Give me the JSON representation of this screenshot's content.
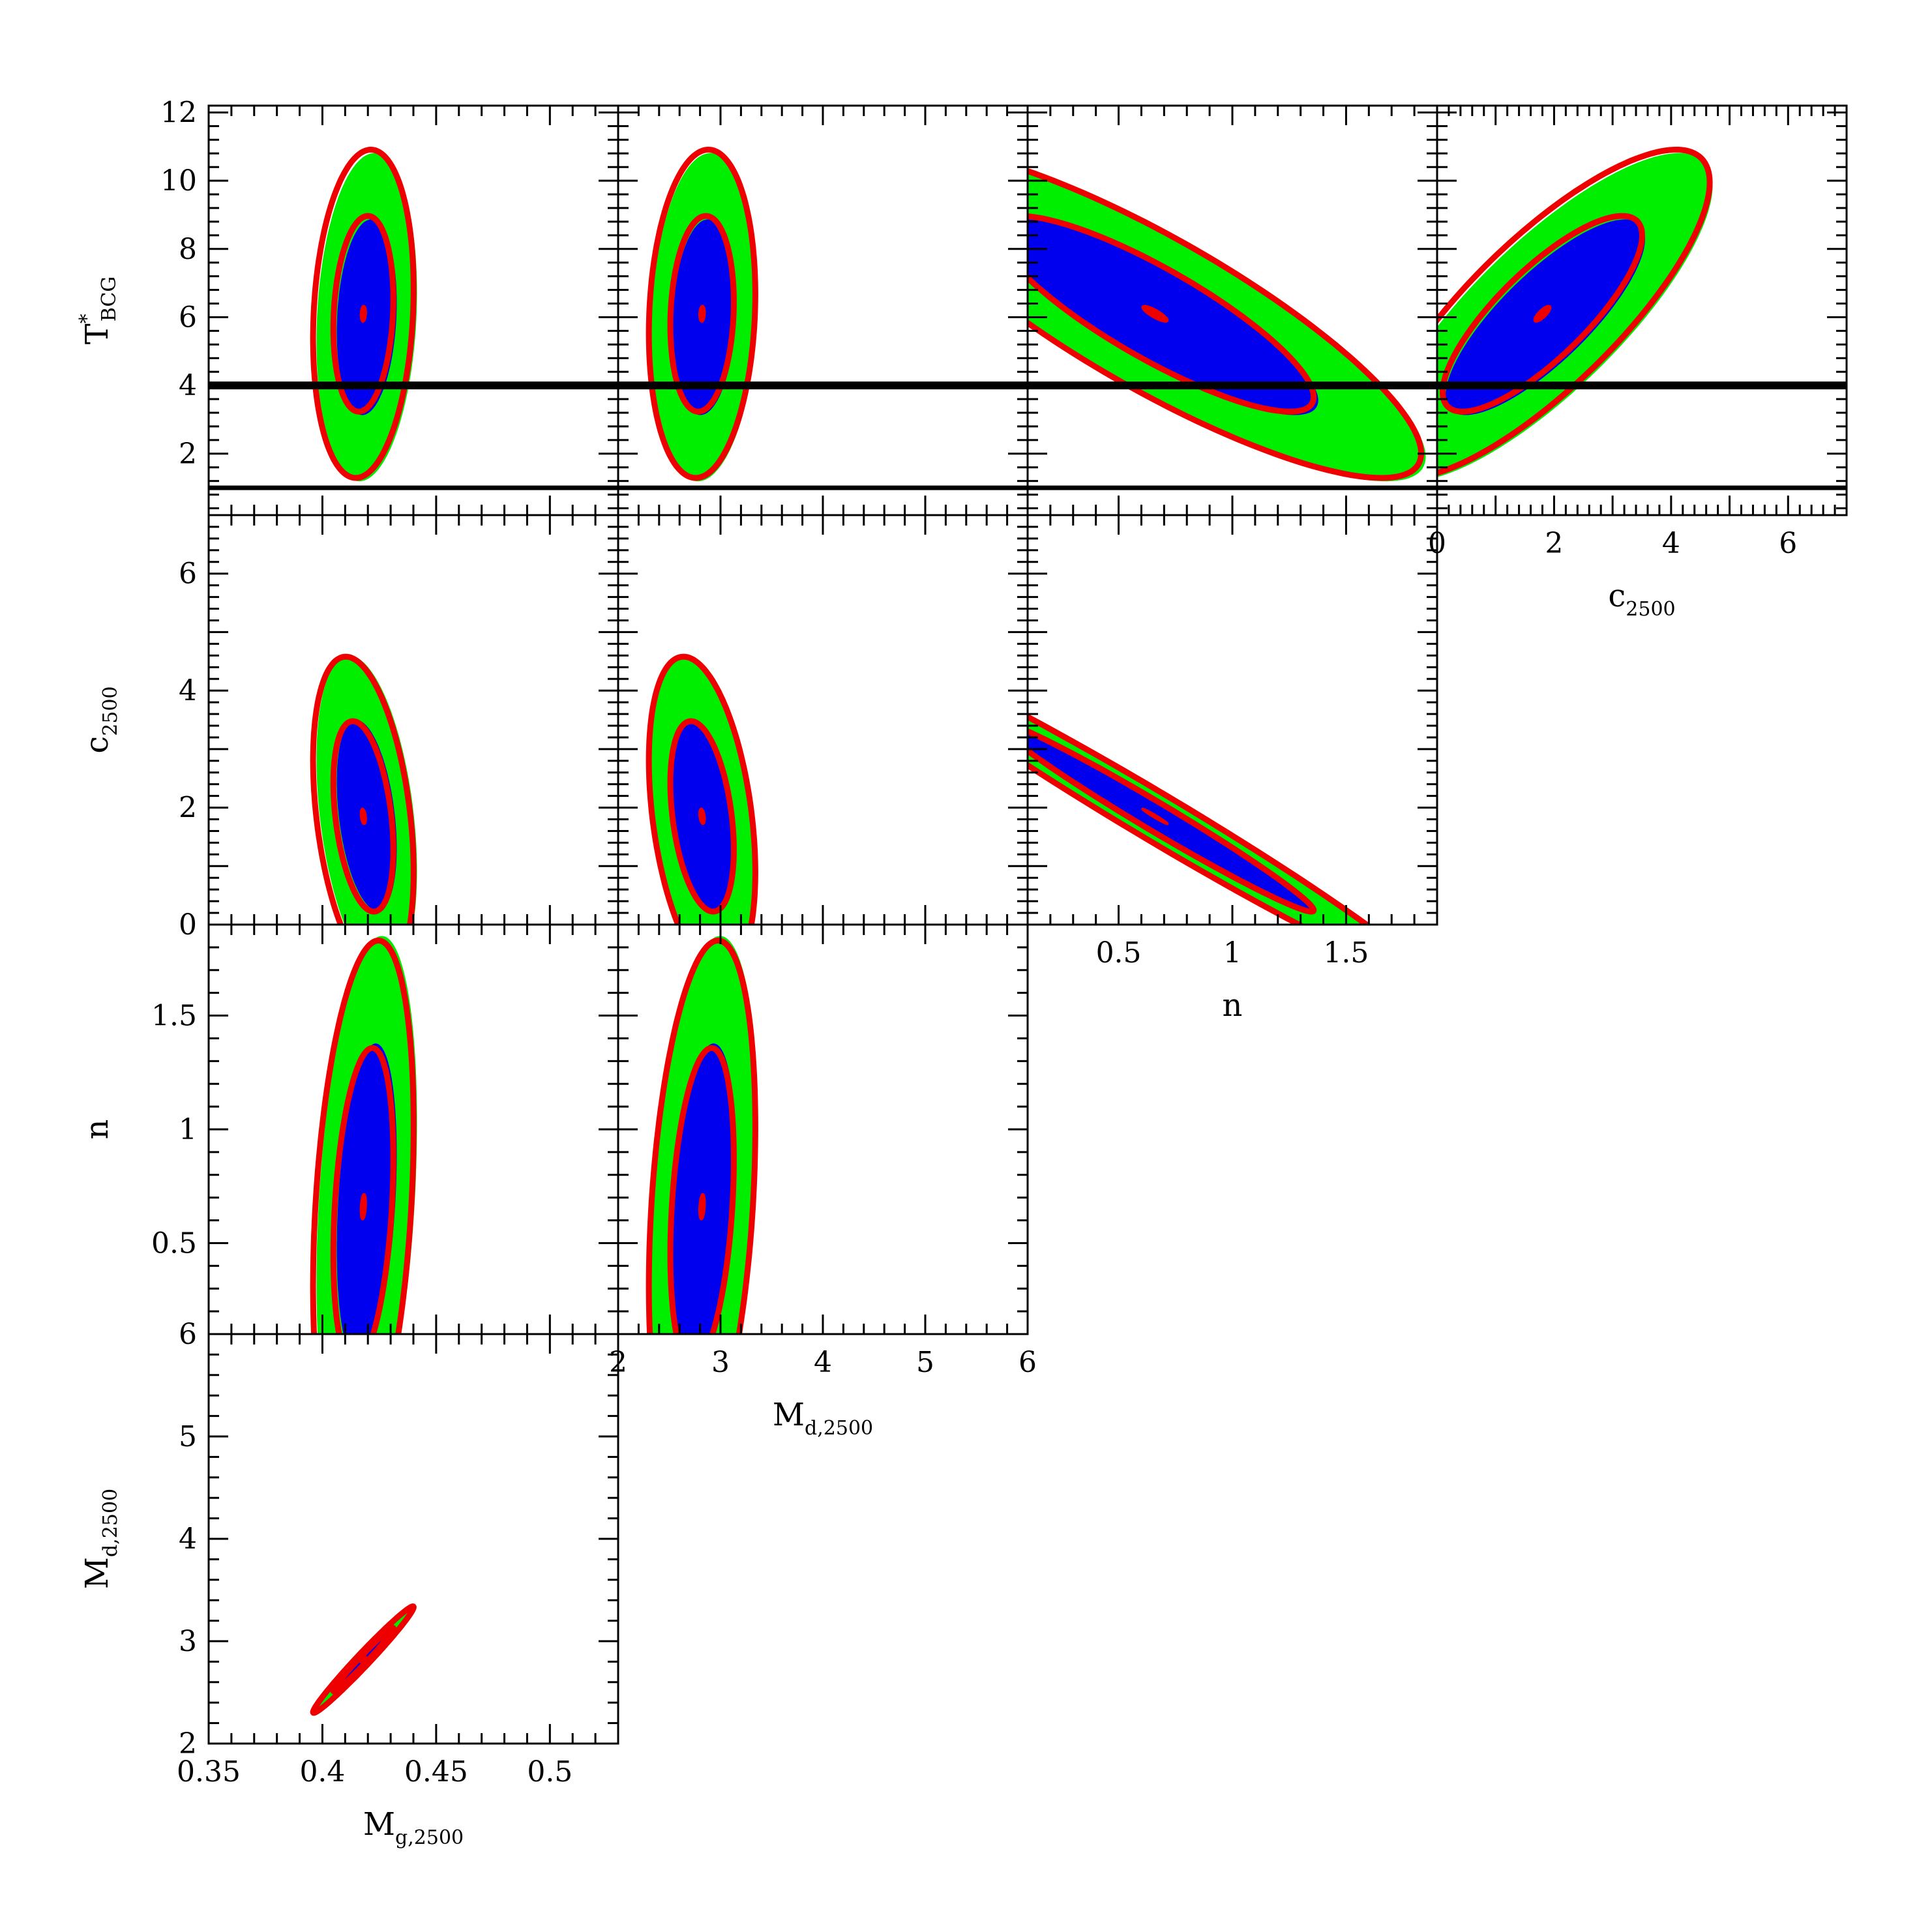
{
  "chart_data": {
    "type": "corner",
    "layers": [
      {
        "role": "filled-outer",
        "color": "#00ee00"
      },
      {
        "role": "filled-inner",
        "color": "#0000ee"
      },
      {
        "role": "contours",
        "color": "#ee0000"
      }
    ],
    "parameters": [
      {
        "id": "mg",
        "label": {
          "base": "M",
          "sub": "g,2500"
        },
        "ticks": [
          "0.35",
          "0.4",
          "0.45",
          "0.5"
        ],
        "range": [
          0.35,
          0.53
        ]
      },
      {
        "id": "md",
        "label": {
          "base": "M",
          "sub": "d,2500"
        },
        "ticks": [
          "2",
          "3",
          "4",
          "5",
          "6"
        ],
        "range": [
          2,
          6
        ]
      },
      {
        "id": "n",
        "label": {
          "base": "n",
          "sub": ""
        },
        "ticks": [
          "0.5",
          "1",
          "1.5"
        ],
        "range": [
          0.1,
          1.9
        ]
      },
      {
        "id": "c",
        "label": {
          "base": "c",
          "sub": "2500"
        },
        "ticks": [
          "0",
          "2",
          "4",
          "6"
        ],
        "range": [
          0,
          7
        ]
      },
      {
        "id": "t",
        "label": {
          "base": "T",
          "sup": "*",
          "sub": "BCG"
        },
        "ticks": [
          "2",
          "4",
          "6",
          "8",
          "10",
          "12"
        ],
        "range": [
          0.2,
          12.2
        ]
      }
    ],
    "y_ticks": {
      "t": [
        "2",
        "4",
        "6",
        "8",
        "10",
        "12"
      ],
      "c": [
        "0",
        "2",
        "4",
        "6"
      ],
      "n": [
        "0.5",
        "1",
        "1.5"
      ],
      "md": [
        "2",
        "3",
        "4",
        "5",
        "6"
      ]
    },
    "x_ticks": {
      "mg": [
        "0.35",
        "0.4",
        "0.45",
        "0.5"
      ],
      "md": [
        "2",
        "3",
        "4",
        "5",
        "6"
      ],
      "n": [
        "0.5",
        "1",
        "1.5"
      ],
      "c": [
        "0",
        "2",
        "4",
        "6"
      ]
    },
    "reference_lines": [
      {
        "param": "t",
        "value": 4.0,
        "weight": "thick"
      },
      {
        "param": "t",
        "value": 1.0,
        "weight": "thin"
      }
    ],
    "panels": [
      {
        "x": "mg",
        "y": "t",
        "center": [
          0.418,
          6.1
        ],
        "sigma": [
          0.0085,
          1.85
        ],
        "rho": 0.15,
        "green_offset": [
          0.0015,
          -0.1
        ]
      },
      {
        "x": "md",
        "y": "t",
        "center": [
          2.82,
          6.1
        ],
        "sigma": [
          0.2,
          1.85
        ],
        "rho": 0.12,
        "green_offset": [
          0.02,
          -0.1
        ]
      },
      {
        "x": "n",
        "y": "t",
        "center": [
          0.66,
          6.1
        ],
        "sigma": [
          0.45,
          1.85
        ],
        "rho": -0.85,
        "green_offset": [
          0.02,
          -0.1
        ]
      },
      {
        "x": "c",
        "y": "t",
        "center": [
          1.8,
          6.1
        ],
        "sigma": [
          1.1,
          1.85
        ],
        "rho": 0.8,
        "green_offset": [
          0.05,
          -0.1
        ]
      },
      {
        "x": "mg",
        "y": "c",
        "center": [
          0.418,
          1.85
        ],
        "sigma": [
          0.0085,
          1.05
        ],
        "rho": -0.35,
        "green_offset": [
          0.0015,
          0.02
        ]
      },
      {
        "x": "md",
        "y": "c",
        "center": [
          2.82,
          1.85
        ],
        "sigma": [
          0.2,
          1.05
        ],
        "rho": -0.35,
        "green_offset": [
          0.02,
          0.02
        ]
      },
      {
        "x": "n",
        "y": "c",
        "center": [
          0.66,
          1.85
        ],
        "sigma": [
          0.45,
          1.05
        ],
        "rho": -0.985,
        "green_offset": [
          0.01,
          0.0
        ]
      },
      {
        "x": "mg",
        "y": "n",
        "center": [
          0.418,
          0.66
        ],
        "sigma": [
          0.0085,
          0.45
        ],
        "rho": 0.3,
        "green_offset": [
          0.0015,
          0.02
        ]
      },
      {
        "x": "md",
        "y": "n",
        "center": [
          2.82,
          0.66
        ],
        "sigma": [
          0.2,
          0.45
        ],
        "rho": 0.3,
        "green_offset": [
          0.02,
          0.02
        ]
      },
      {
        "x": "mg",
        "y": "md",
        "center": [
          0.418,
          2.82
        ],
        "sigma": [
          0.0085,
          0.2
        ],
        "rho": 0.985,
        "green_offset": [
          0.0,
          0.0
        ]
      }
    ]
  }
}
